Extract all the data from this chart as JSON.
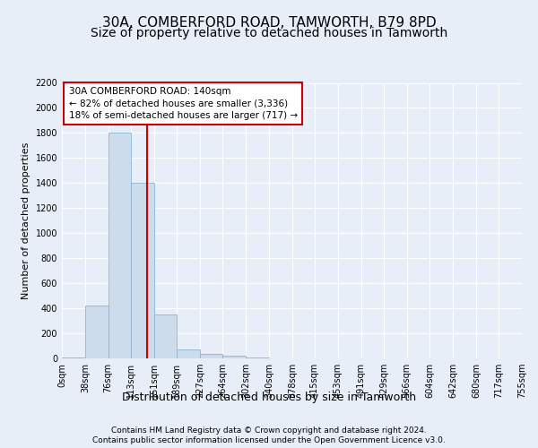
{
  "title1": "30A, COMBERFORD ROAD, TAMWORTH, B79 8PD",
  "title2": "Size of property relative to detached houses in Tamworth",
  "xlabel": "Distribution of detached houses by size in Tamworth",
  "ylabel": "Number of detached properties",
  "bin_edges": [
    0,
    38,
    76,
    113,
    151,
    189,
    227,
    264,
    302,
    340,
    378,
    415,
    453,
    491,
    529,
    566,
    604,
    642,
    680,
    717,
    755
  ],
  "bar_heights": [
    10,
    420,
    1800,
    1400,
    350,
    75,
    35,
    20,
    5,
    0,
    0,
    0,
    0,
    0,
    0,
    0,
    0,
    0,
    0,
    0
  ],
  "bar_color": "#ccdcec",
  "bar_edgecolor": "#8ab4d0",
  "red_line_x": 140,
  "annotation_text": "30A COMBERFORD ROAD: 140sqm\n← 82% of detached houses are smaller (3,336)\n18% of semi-detached houses are larger (717) →",
  "annotation_box_color": "#ffffff",
  "annotation_border_color": "#cc0000",
  "ylim": [
    0,
    2200
  ],
  "yticks": [
    0,
    200,
    400,
    600,
    800,
    1000,
    1200,
    1400,
    1600,
    1800,
    2000,
    2200
  ],
  "footer1": "Contains HM Land Registry data © Crown copyright and database right 2024.",
  "footer2": "Contains public sector information licensed under the Open Government Licence v3.0.",
  "bg_color": "#e8eef8",
  "plot_bg_color": "#e8eef8",
  "grid_color": "#ffffff",
  "title1_fontsize": 11,
  "title2_fontsize": 10,
  "ylabel_fontsize": 8,
  "xlabel_fontsize": 9,
  "tick_label_fontsize": 7,
  "annotation_fontsize": 7.5,
  "footer_fontsize": 6.5
}
